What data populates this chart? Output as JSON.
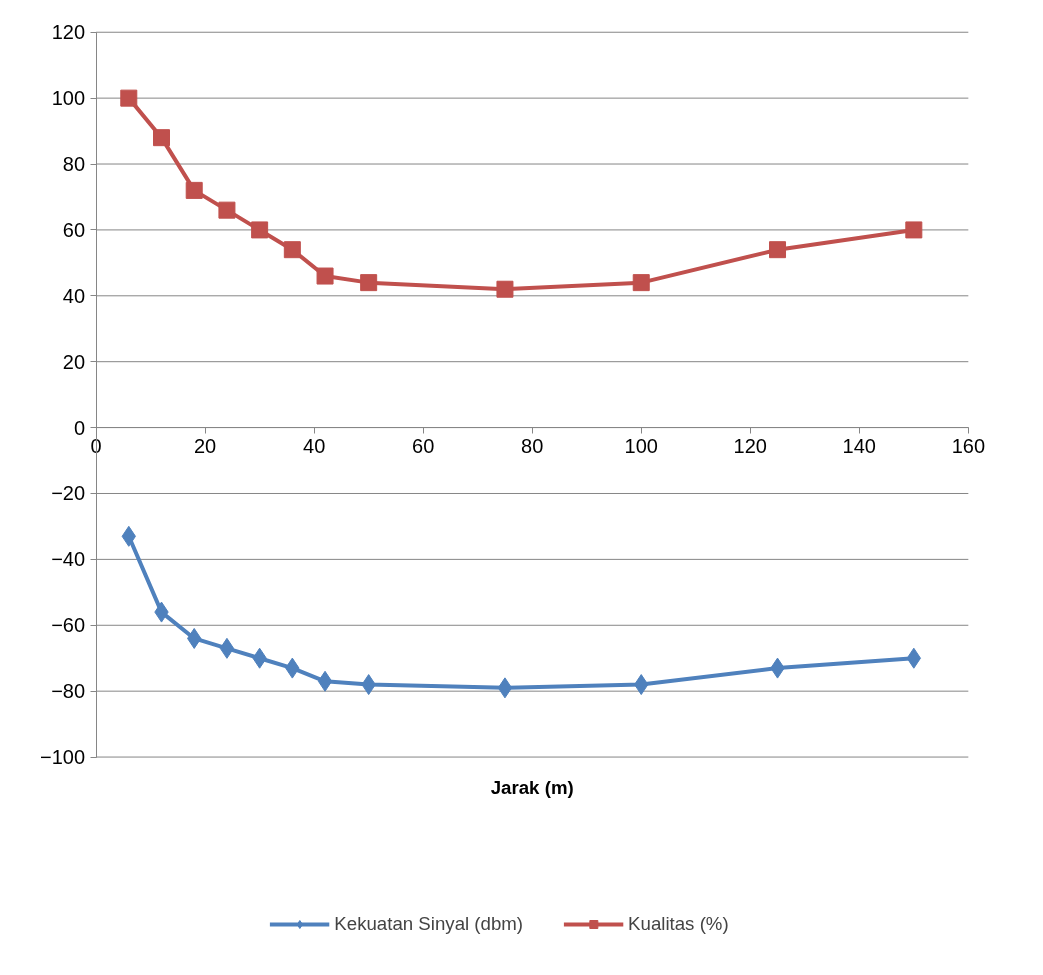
{
  "chart_data": {
    "type": "line",
    "xlabel": "Jarak (m)",
    "x": [
      6,
      12,
      18,
      24,
      30,
      36,
      42,
      50,
      75,
      100,
      125,
      150
    ],
    "series": [
      {
        "name": "Kekuatan Sinyal (dbm)",
        "color": "#4f81bd",
        "marker": "diamond",
        "values": [
          -33,
          -56,
          -64,
          -67,
          -70,
          -73,
          -77,
          -78,
          -79,
          -78,
          -73,
          -70
        ]
      },
      {
        "name": "Kualitas (%)",
        "color": "#c0504d",
        "marker": "square",
        "values": [
          100,
          88,
          72,
          66,
          60,
          54,
          46,
          44,
          42,
          44,
          54,
          60
        ]
      }
    ],
    "xlim": [
      0,
      160
    ],
    "xticks": [
      0,
      20,
      40,
      60,
      80,
      100,
      120,
      140,
      160
    ],
    "ylim": [
      -100,
      120
    ],
    "yticks": [
      -100,
      -80,
      -60,
      -40,
      -20,
      0,
      20,
      40,
      60,
      80,
      100,
      120
    ],
    "grid": "y",
    "legend": "bottom",
    "line_style": "solid"
  }
}
